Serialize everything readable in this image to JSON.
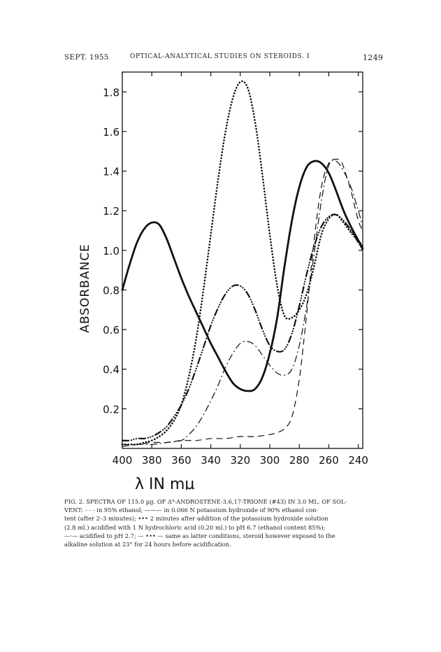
{
  "header": {
    "left": "SEPT. 1955",
    "center": "OPTICAL-ANALYTICAL STUDIES ON STEROIDS. I",
    "page_number": "1249"
  },
  "caption": {
    "lines": [
      "FIG. 2. SPECTRA OF 115.0 µg. OF Δ⁴-ANDROSTENE-3,6,17-TRIONE (#43) IN 3.0 ML. OF SOL-",
      "VENT: - - - in 95% ethanol; ——— in 0.066 N potassium hydroxide of 90% ethanol con-",
      "tent (after 2–3 minutes); ••• 2 minutes after addition of the potassium hydroxide solution",
      "(2.8 ml.) acidified with 1 N hydrochloric acid (0.20 ml.) to pH 6.7 (ethanol content 85%);",
      "—·— acidified to pH 2.7; — ••• — same as latter conditions, steroid however exposed to the",
      "alkaline solution at 23° for 24 hours before acidification."
    ]
  },
  "chart_data": {
    "type": "line",
    "ylabel": "ABSORBANCE",
    "xlabel": "λ IN mµ",
    "x_reversed": true,
    "xlim": [
      400,
      237
    ],
    "ylim": [
      0,
      1.9
    ],
    "x_ticks": [
      400,
      380,
      360,
      340,
      320,
      300,
      280,
      260,
      240
    ],
    "x_tick_labels": [
      "400",
      "380",
      "360",
      "340",
      "320",
      "300",
      "280",
      "260",
      "240"
    ],
    "y_ticks": [
      0.2,
      0.4,
      0.6,
      0.8,
      1.0,
      1.2,
      1.4,
      1.6,
      1.8
    ],
    "y_tick_labels": [
      "0.2",
      "0.4",
      "0.6",
      "0.8",
      "1.0",
      "1.2",
      "1.4",
      "1.6",
      "1.8"
    ],
    "grid": false,
    "series": [
      {
        "style": "solid",
        "x": [
          400,
          395,
          390,
          385,
          380,
          375,
          370,
          365,
          360,
          355,
          350,
          345,
          340,
          335,
          330,
          325,
          320,
          315,
          310,
          305,
          300,
          295,
          290,
          285,
          280,
          275,
          270,
          265,
          260,
          255,
          250,
          245,
          240,
          237
        ],
        "y": [
          0.8,
          0.93,
          1.04,
          1.11,
          1.14,
          1.13,
          1.06,
          0.96,
          0.86,
          0.77,
          0.69,
          0.61,
          0.53,
          0.46,
          0.39,
          0.33,
          0.3,
          0.29,
          0.3,
          0.36,
          0.48,
          0.66,
          0.92,
          1.15,
          1.32,
          1.42,
          1.45,
          1.44,
          1.39,
          1.3,
          1.2,
          1.12,
          1.05,
          1.01
        ]
      },
      {
        "style": "dashed",
        "x": [
          400,
          390,
          380,
          370,
          360,
          350,
          340,
          330,
          320,
          310,
          300,
          295,
          290,
          285,
          280,
          275,
          270,
          265,
          260,
          255,
          252,
          250,
          245,
          240,
          237
        ],
        "y": [
          0.02,
          0.02,
          0.03,
          0.03,
          0.04,
          0.04,
          0.05,
          0.05,
          0.06,
          0.06,
          0.07,
          0.08,
          0.1,
          0.16,
          0.35,
          0.68,
          1.05,
          1.32,
          1.44,
          1.46,
          1.45,
          1.42,
          1.3,
          1.15,
          1.1
        ]
      },
      {
        "style": "dotted",
        "x": [
          400,
          395,
          390,
          385,
          380,
          375,
          370,
          365,
          360,
          355,
          350,
          345,
          340,
          335,
          330,
          325,
          320,
          315,
          310,
          305,
          300,
          295,
          290,
          285,
          280,
          275,
          270,
          265,
          260,
          255,
          250,
          245,
          240,
          237
        ],
        "y": [
          0.02,
          0.02,
          0.02,
          0.03,
          0.04,
          0.06,
          0.09,
          0.14,
          0.22,
          0.36,
          0.55,
          0.8,
          1.08,
          1.36,
          1.6,
          1.77,
          1.85,
          1.82,
          1.65,
          1.38,
          1.08,
          0.82,
          0.67,
          0.66,
          0.7,
          0.78,
          0.92,
          1.08,
          1.16,
          1.18,
          1.14,
          1.09,
          1.05,
          1.02
        ]
      },
      {
        "style": "dash-dot",
        "x": [
          400,
          390,
          380,
          370,
          360,
          355,
          350,
          345,
          340,
          335,
          330,
          325,
          320,
          315,
          310,
          305,
          300,
          295,
          290,
          285,
          280,
          275,
          270,
          265,
          260,
          255,
          250,
          245,
          240,
          237
        ],
        "y": [
          0.01,
          0.02,
          0.02,
          0.03,
          0.04,
          0.07,
          0.11,
          0.17,
          0.24,
          0.32,
          0.41,
          0.48,
          0.53,
          0.54,
          0.52,
          0.47,
          0.42,
          0.38,
          0.37,
          0.4,
          0.52,
          0.72,
          0.98,
          1.25,
          1.43,
          1.45,
          1.4,
          1.32,
          1.2,
          1.12
        ]
      },
      {
        "style": "dash-dot-dot",
        "x": [
          400,
          395,
          390,
          385,
          380,
          375,
          370,
          365,
          360,
          355,
          350,
          345,
          340,
          335,
          330,
          325,
          320,
          315,
          310,
          305,
          300,
          295,
          290,
          285,
          280,
          275,
          270,
          265,
          260,
          255,
          250,
          245,
          240,
          237
        ],
        "y": [
          0.04,
          0.04,
          0.05,
          0.05,
          0.06,
          0.08,
          0.11,
          0.16,
          0.22,
          0.3,
          0.4,
          0.51,
          0.62,
          0.71,
          0.78,
          0.82,
          0.82,
          0.78,
          0.7,
          0.6,
          0.52,
          0.49,
          0.5,
          0.58,
          0.72,
          0.88,
          1.02,
          1.12,
          1.17,
          1.18,
          1.15,
          1.1,
          1.04,
          1.0
        ]
      }
    ]
  }
}
